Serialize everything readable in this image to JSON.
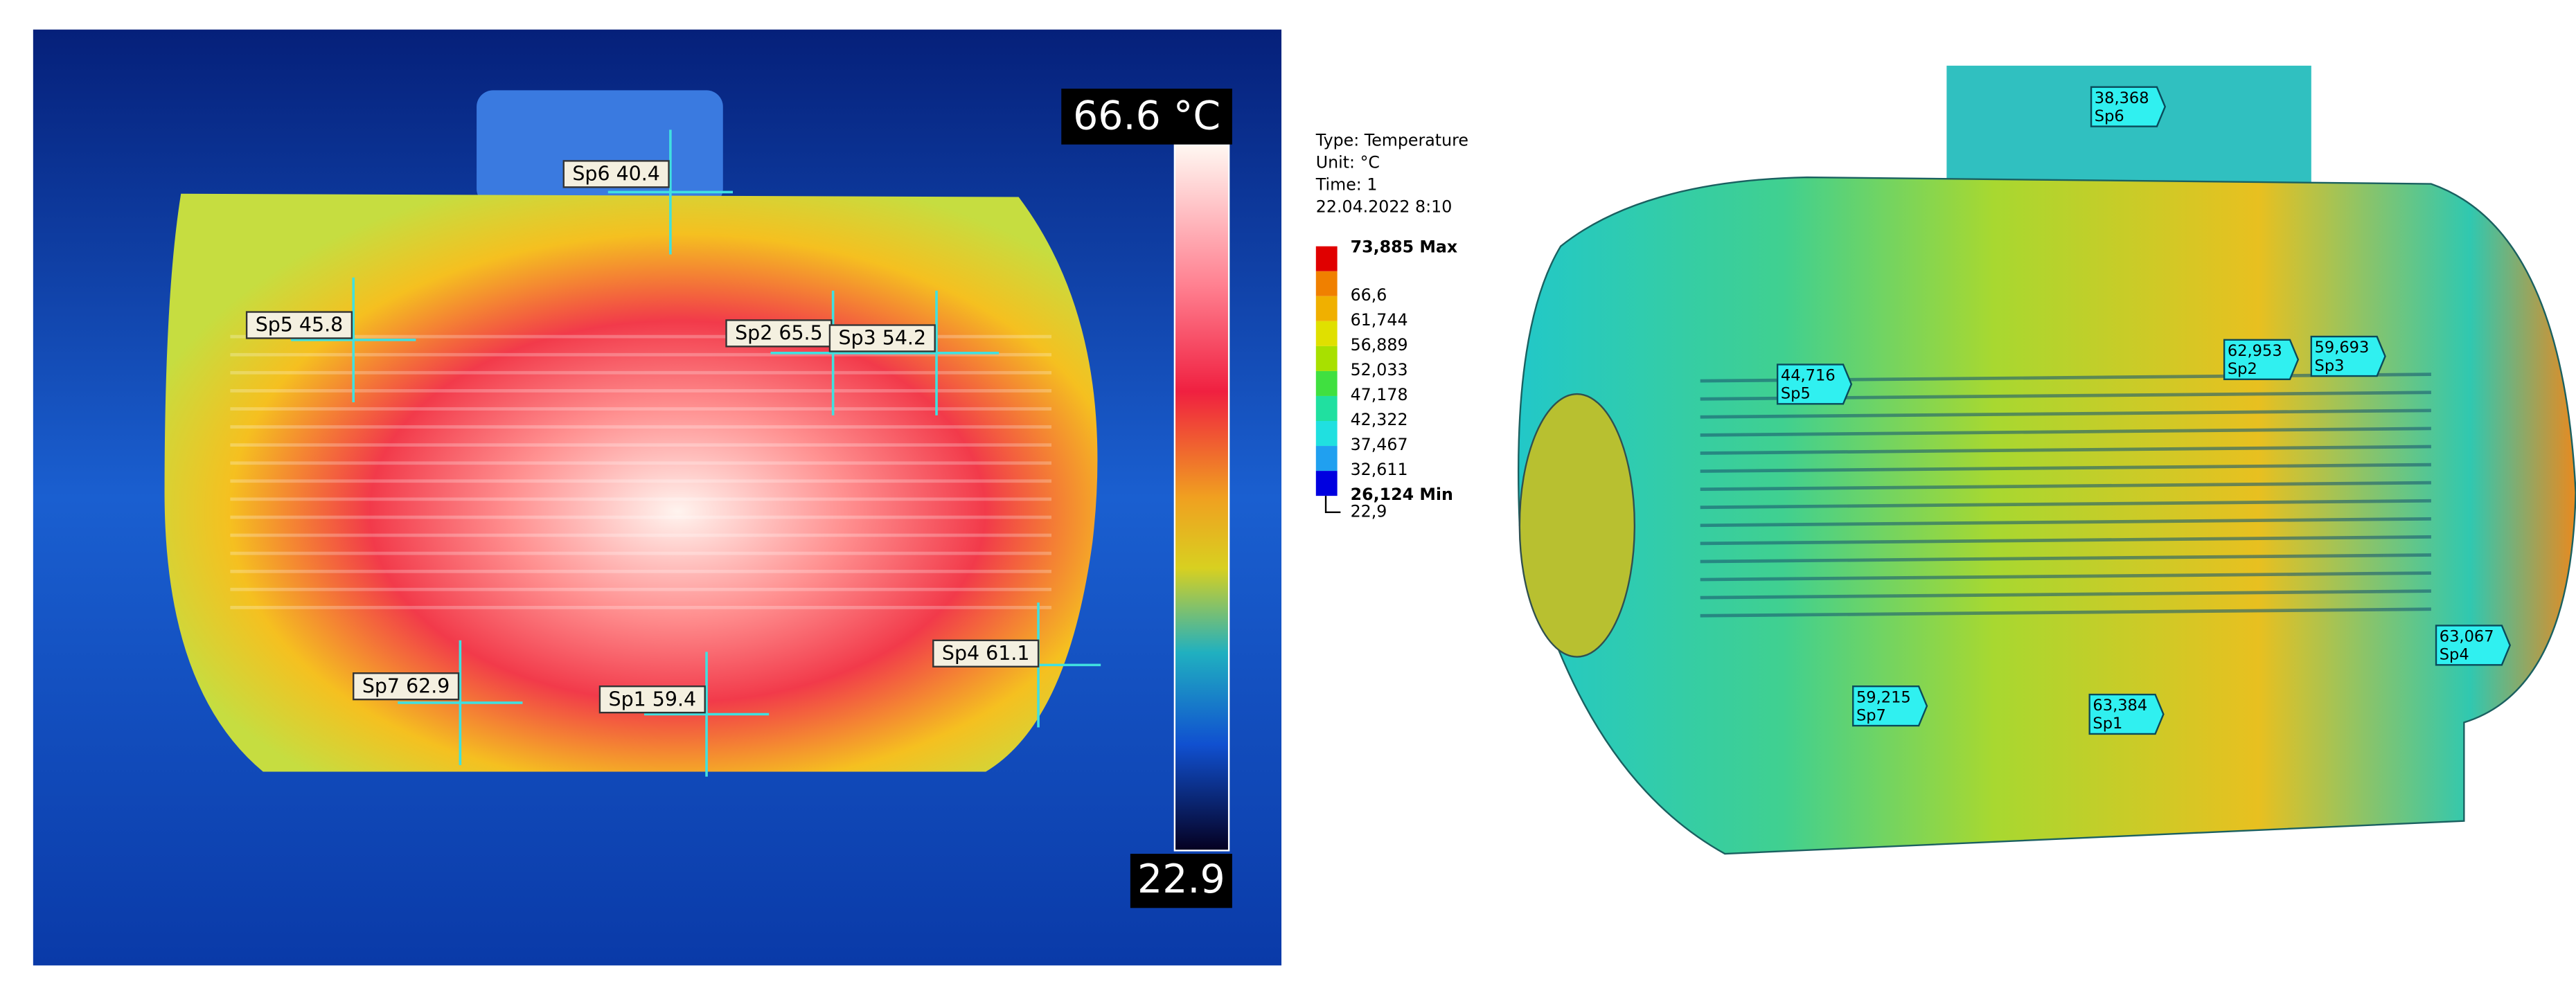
{
  "thermal": {
    "max_label": "66.6 °C",
    "min_label": "22.9",
    "spots": [
      "Sp6 40.4",
      "Sp5 45.8",
      "Sp2 65.5",
      "Sp3 54.2",
      "Sp4 61.1",
      "Sp7 62.9",
      "Sp1 59.4"
    ]
  },
  "simulation": {
    "info": [
      "Type: Temperature",
      "Unit: °C",
      "Time: 1",
      "22.04.2022 8:10"
    ],
    "legend": [
      "73,885 Max",
      "66,6",
      "61,744",
      "56,889",
      "52,033",
      "47,178",
      "42,322",
      "37,467",
      "32,611",
      "26,124 Min"
    ],
    "legend_min": "22,9",
    "probes": [
      {
        "value": "38,368",
        "name": "Sp6"
      },
      {
        "value": "44,716",
        "name": "Sp5"
      },
      {
        "value": "62,953",
        "name": "Sp2"
      },
      {
        "value": "59,693",
        "name": "Sp3"
      },
      {
        "value": "63,067",
        "name": "Sp4"
      },
      {
        "value": "59,215",
        "name": "Sp7"
      },
      {
        "value": "63,384",
        "name": "Sp1"
      }
    ]
  }
}
